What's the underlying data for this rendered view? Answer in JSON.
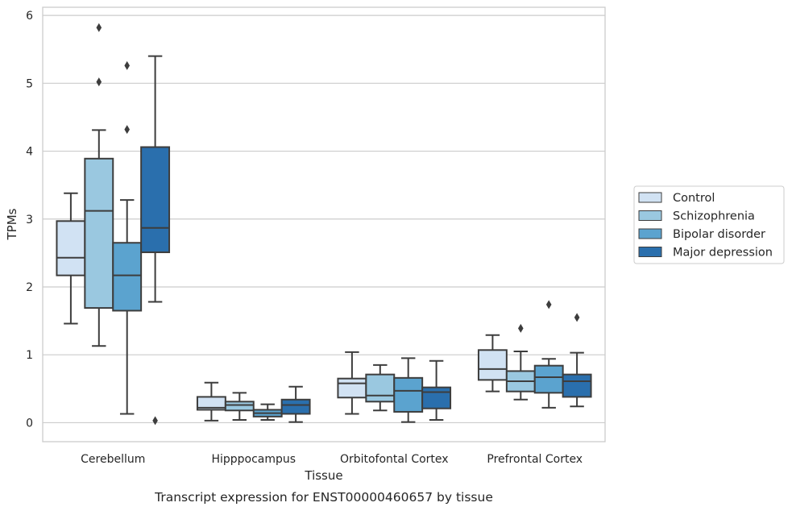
{
  "caption": "Transcript expression for ENST00000460657 by tissue",
  "chart_data": {
    "type": "boxplot",
    "xlabel": "Tissue",
    "ylabel": "TPMs",
    "ylim": [
      -0.28,
      6.12
    ],
    "yticks": [
      0,
      1,
      2,
      3,
      4,
      5,
      6
    ],
    "grid": true,
    "legend_position": "right",
    "categories": [
      "Cerebellum",
      "Hipppocampus",
      "Orbitofontal Cortex",
      "Prefrontal Cortex"
    ],
    "series": [
      {
        "name": "Control",
        "color": "#d1e2f3",
        "boxes": [
          {
            "whislo": 1.46,
            "q1": 2.17,
            "med": 2.43,
            "q3": 2.97,
            "whishi": 3.38,
            "fliers": []
          },
          {
            "whislo": 0.03,
            "q1": 0.19,
            "med": 0.22,
            "q3": 0.38,
            "whishi": 0.59,
            "fliers": []
          },
          {
            "whislo": 0.13,
            "q1": 0.37,
            "med": 0.58,
            "q3": 0.65,
            "whishi": 1.04,
            "fliers": []
          },
          {
            "whislo": 0.46,
            "q1": 0.63,
            "med": 0.79,
            "q3": 1.07,
            "whishi": 1.29,
            "fliers": []
          }
        ]
      },
      {
        "name": "Schizophrenia",
        "color": "#9ac8e0",
        "boxes": [
          {
            "whislo": 1.13,
            "q1": 1.69,
            "med": 3.12,
            "q3": 3.89,
            "whishi": 4.31,
            "fliers": [
              5.82,
              5.02
            ]
          },
          {
            "whislo": 0.04,
            "q1": 0.18,
            "med": 0.26,
            "q3": 0.31,
            "whishi": 0.44,
            "fliers": []
          },
          {
            "whislo": 0.18,
            "q1": 0.31,
            "med": 0.4,
            "q3": 0.71,
            "whishi": 0.85,
            "fliers": []
          },
          {
            "whislo": 0.34,
            "q1": 0.46,
            "med": 0.61,
            "q3": 0.76,
            "whishi": 1.05,
            "fliers": [
              1.39
            ]
          }
        ]
      },
      {
        "name": "Bipolar disorder",
        "color": "#5ba3cf",
        "boxes": [
          {
            "whislo": 0.13,
            "q1": 1.65,
            "med": 2.17,
            "q3": 2.65,
            "whishi": 3.28,
            "fliers": [
              5.26,
              4.32
            ]
          },
          {
            "whislo": 0.04,
            "q1": 0.09,
            "med": 0.14,
            "q3": 0.19,
            "whishi": 0.27,
            "fliers": []
          },
          {
            "whislo": 0.01,
            "q1": 0.16,
            "med": 0.47,
            "q3": 0.66,
            "whishi": 0.95,
            "fliers": []
          },
          {
            "whislo": 0.22,
            "q1": 0.44,
            "med": 0.67,
            "q3": 0.84,
            "whishi": 0.94,
            "fliers": [
              1.74
            ]
          }
        ]
      },
      {
        "name": "Major depression",
        "color": "#2a6fad",
        "boxes": [
          {
            "whislo": 1.78,
            "q1": 2.51,
            "med": 2.87,
            "q3": 4.06,
            "whishi": 5.4,
            "fliers": [
              0.03
            ]
          },
          {
            "whislo": 0.01,
            "q1": 0.13,
            "med": 0.26,
            "q3": 0.34,
            "whishi": 0.53,
            "fliers": []
          },
          {
            "whislo": 0.04,
            "q1": 0.21,
            "med": 0.45,
            "q3": 0.52,
            "whishi": 0.91,
            "fliers": []
          },
          {
            "whislo": 0.24,
            "q1": 0.38,
            "med": 0.61,
            "q3": 0.71,
            "whishi": 1.03,
            "fliers": [
              1.55
            ]
          }
        ]
      }
    ]
  }
}
